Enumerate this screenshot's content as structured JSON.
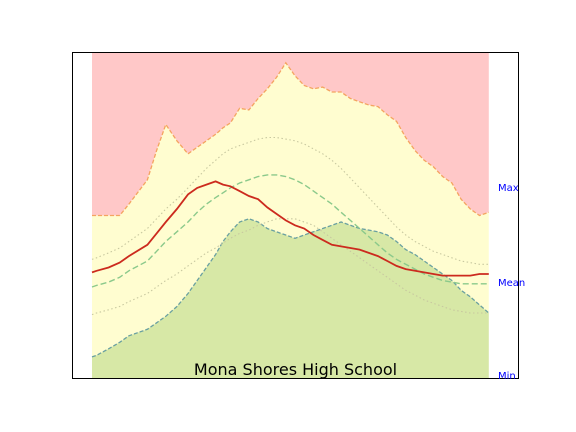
{
  "chart_data": {
    "type": "area",
    "title": "Mona Shores High School",
    "xlabel": "",
    "ylabel": "",
    "xlim": [
      0,
      22
    ],
    "ylim": [
      0,
      1
    ],
    "grid": false,
    "legend": "none",
    "right_labels": {
      "max": "Max",
      "mean": "Mean",
      "min": "Min"
    },
    "right_label_levels": {
      "max": 0.588,
      "mean": 0.295,
      "min": 0.0
    },
    "x": [
      0,
      0.25,
      0.9,
      1.5,
      2.0,
      3.0,
      3.5,
      4.0,
      4.6,
      5.2,
      5.7,
      6.2,
      6.7,
      7.1,
      7.5,
      8.0,
      8.5,
      9.0,
      9.5,
      10.0,
      10.5,
      11.0,
      11.5,
      12.0,
      12.5,
      13.0,
      13.5,
      14.0,
      14.5,
      15.0,
      15.5,
      16.0,
      16.5,
      17.0,
      17.5,
      18.0,
      18.5,
      19.0,
      19.5,
      20.0,
      20.5,
      21.0,
      21.5
    ],
    "series": [
      {
        "role": "max_envelope",
        "values": [
          0.5,
          0.5,
          0.5,
          0.5,
          0.535,
          0.61,
          0.7,
          0.78,
          0.73,
          0.69,
          0.71,
          0.73,
          0.75,
          0.77,
          0.785,
          0.83,
          0.825,
          0.86,
          0.89,
          0.925,
          0.97,
          0.93,
          0.9,
          0.89,
          0.895,
          0.88,
          0.88,
          0.86,
          0.85,
          0.84,
          0.835,
          0.81,
          0.79,
          0.74,
          0.7,
          0.67,
          0.65,
          0.62,
          0.6,
          0.55,
          0.52,
          0.5,
          0.51
        ]
      },
      {
        "role": "min_envelope",
        "values": [
          0.065,
          0.07,
          0.09,
          0.11,
          0.13,
          0.15,
          0.17,
          0.19,
          0.22,
          0.26,
          0.3,
          0.34,
          0.38,
          0.42,
          0.45,
          0.48,
          0.49,
          0.48,
          0.46,
          0.45,
          0.44,
          0.43,
          0.44,
          0.45,
          0.46,
          0.47,
          0.48,
          0.47,
          0.46,
          0.455,
          0.45,
          0.44,
          0.42,
          0.395,
          0.38,
          0.36,
          0.34,
          0.32,
          0.3,
          0.27,
          0.25,
          0.225,
          0.2
        ]
      },
      {
        "role": "upper_dotted",
        "values": [
          0.365,
          0.37,
          0.385,
          0.4,
          0.42,
          0.46,
          0.49,
          0.52,
          0.55,
          0.585,
          0.615,
          0.645,
          0.67,
          0.69,
          0.705,
          0.715,
          0.725,
          0.735,
          0.74,
          0.74,
          0.735,
          0.73,
          0.72,
          0.705,
          0.69,
          0.67,
          0.645,
          0.615,
          0.585,
          0.555,
          0.525,
          0.495,
          0.465,
          0.44,
          0.42,
          0.405,
          0.39,
          0.38,
          0.37,
          0.36,
          0.355,
          0.35,
          0.35
        ]
      },
      {
        "role": "lower_dotted",
        "values": [
          0.195,
          0.2,
          0.21,
          0.22,
          0.235,
          0.26,
          0.28,
          0.3,
          0.32,
          0.345,
          0.365,
          0.385,
          0.4,
          0.415,
          0.43,
          0.445,
          0.455,
          0.47,
          0.48,
          0.49,
          0.49,
          0.49,
          0.48,
          0.47,
          0.45,
          0.43,
          0.41,
          0.39,
          0.37,
          0.35,
          0.33,
          0.31,
          0.29,
          0.27,
          0.255,
          0.24,
          0.23,
          0.22,
          0.21,
          0.205,
          0.2,
          0.2,
          0.2
        ]
      },
      {
        "role": "mean_dashed",
        "values": [
          0.28,
          0.285,
          0.295,
          0.31,
          0.33,
          0.36,
          0.39,
          0.42,
          0.45,
          0.48,
          0.51,
          0.535,
          0.555,
          0.57,
          0.585,
          0.6,
          0.61,
          0.62,
          0.625,
          0.625,
          0.62,
          0.61,
          0.595,
          0.575,
          0.555,
          0.535,
          0.51,
          0.485,
          0.46,
          0.435,
          0.41,
          0.385,
          0.365,
          0.35,
          0.335,
          0.32,
          0.31,
          0.3,
          0.295,
          0.29,
          0.29,
          0.29,
          0.29
        ]
      },
      {
        "role": "current_year",
        "values": [
          0.325,
          0.33,
          0.34,
          0.355,
          0.375,
          0.41,
          0.445,
          0.48,
          0.52,
          0.565,
          0.585,
          0.595,
          0.605,
          0.595,
          0.59,
          0.575,
          0.56,
          0.55,
          0.525,
          0.505,
          0.485,
          0.47,
          0.46,
          0.44,
          0.425,
          0.41,
          0.405,
          0.4,
          0.395,
          0.385,
          0.375,
          0.36,
          0.345,
          0.335,
          0.33,
          0.325,
          0.32,
          0.315,
          0.315,
          0.315,
          0.315,
          0.32,
          0.32
        ]
      }
    ]
  },
  "colors": {
    "max_fill": "#ffc8c8",
    "band_fill": "#fffdd0",
    "min_fill": "#d7e8a6",
    "max_line": "#f4a460",
    "min_line": "#6aa0a0",
    "mean_dashed": "#8bc98b",
    "dotted": "#c8c8a0",
    "current_year": "#cc2a1e",
    "right_labels": "#0000ff",
    "frame": "#000000"
  }
}
